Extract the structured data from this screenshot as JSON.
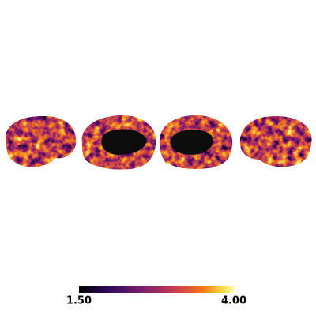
{
  "colorbar": {
    "lim": [
      1.5,
      4.0
    ],
    "ticks": [
      {
        "value": 1.5,
        "label": "1.50"
      },
      {
        "value": 4.0,
        "label": "4.00"
      }
    ]
  }
}
